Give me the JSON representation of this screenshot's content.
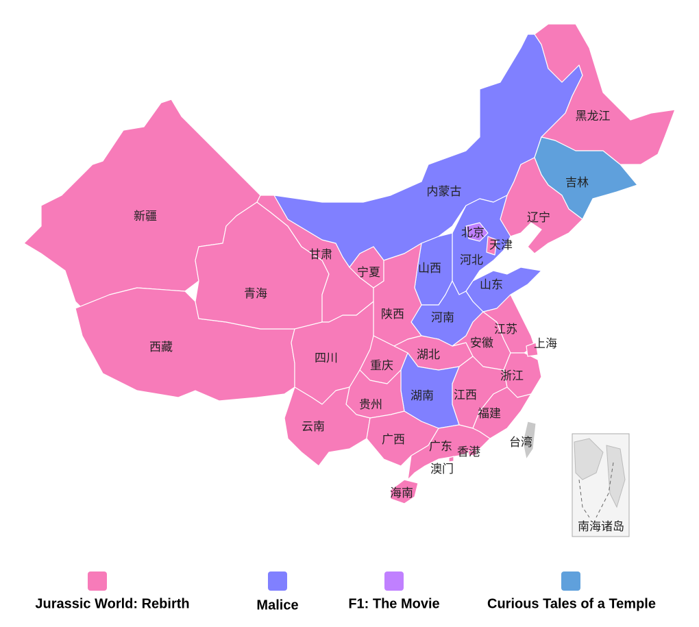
{
  "legend": [
    {
      "name": "Jurassic World: Rebirth",
      "color": "#f77bb9",
      "regions": [
        "新疆",
        "西藏",
        "青海",
        "甘肃",
        "宁夏",
        "陕西",
        "四川",
        "重庆",
        "云南",
        "贵州",
        "广西",
        "湖北",
        "江西",
        "安徽",
        "江苏",
        "浙江",
        "福建",
        "广东",
        "海南",
        "黑龙江",
        "辽宁",
        "上海",
        "天津",
        "香港",
        "澳门"
      ]
    },
    {
      "name": "Malice",
      "color": "#8080ff",
      "regions": [
        "内蒙古",
        "山西",
        "河北",
        "山东",
        "河南",
        "湖南"
      ]
    },
    {
      "name": "F1: The Movie",
      "color": "#c080ff",
      "regions": [
        "北京"
      ]
    },
    {
      "name": "Curious Tales of a Temple",
      "color": "#5fa0dc",
      "regions": [
        "吉林"
      ]
    }
  ],
  "unassigned": {
    "taiwan": "台湾",
    "south_sea_islands": "南海诸岛"
  }
}
